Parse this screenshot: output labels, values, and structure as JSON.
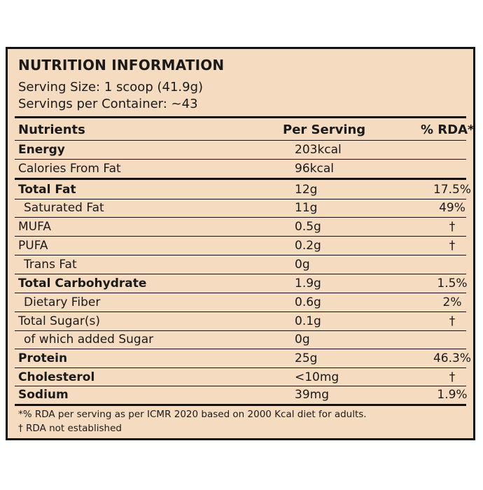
{
  "title": "NUTRITION INFORMATION",
  "serving_size": "Serving Size: 1 scoop (41.9g)",
  "servings_per_container": "Servings per Container: ~43",
  "headers": {
    "nutrients": "Nutrients",
    "per_serving": "Per Serving",
    "rda": "% RDA*"
  },
  "rows": [
    {
      "name": "Energy",
      "value": "203kcal",
      "rda": ""
    },
    {
      "name": "Calories From Fat",
      "value": "96kcal",
      "rda": ""
    },
    {
      "name": "Total Fat",
      "value": "12g",
      "rda": "17.5%"
    },
    {
      "name": "Saturated Fat",
      "value": "11g",
      "rda": "49%"
    },
    {
      "name": "MUFA",
      "value": "0.5g",
      "rda": "†"
    },
    {
      "name": "PUFA",
      "value": "0.2g",
      "rda": "†"
    },
    {
      "name": "Trans Fat",
      "value": "0g",
      "rda": ""
    },
    {
      "name": "Total Carbohydrate",
      "value": "1.9g",
      "rda": "1.5%"
    },
    {
      "name": "Dietary Fiber",
      "value": "0.6g",
      "rda": "2%"
    },
    {
      "name": "Total Sugar(s)",
      "value": "0.1g",
      "rda": "†"
    },
    {
      "name": "of which added Sugar",
      "value": "0g",
      "rda": ""
    },
    {
      "name": "Protein",
      "value": "25g",
      "rda": "46.3%"
    },
    {
      "name": "Cholesterol",
      "value": "<10mg",
      "rda": "†"
    },
    {
      "name": "Sodium",
      "value": "39mg",
      "rda": "1.9%"
    }
  ],
  "footnotes": [
    "*% RDA per serving as per ICMR 2020 based on 2000 Kcal diet for adults.",
    "† RDA not established"
  ]
}
